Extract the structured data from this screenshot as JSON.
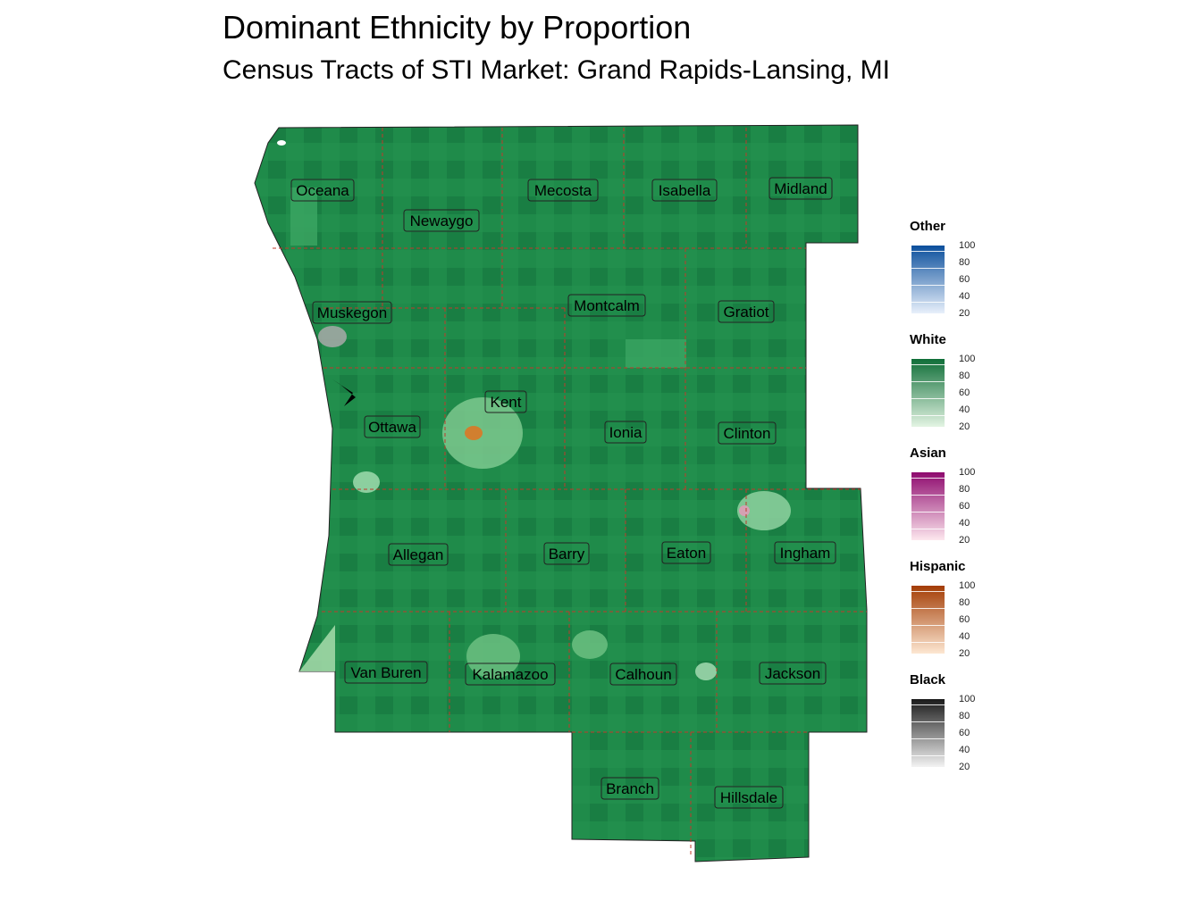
{
  "title": "Dominant Ethnicity by Proportion",
  "subtitle": "Census Tracts of STI Market: Grand Rapids-Lansing, MI",
  "map": {
    "counties": [
      {
        "name": "Oceana"
      },
      {
        "name": "Newaygo"
      },
      {
        "name": "Mecosta"
      },
      {
        "name": "Isabella"
      },
      {
        "name": "Midland"
      },
      {
        "name": "Muskegon"
      },
      {
        "name": "Montcalm"
      },
      {
        "name": "Gratiot"
      },
      {
        "name": "Kent"
      },
      {
        "name": "Ottawa"
      },
      {
        "name": "Ionia"
      },
      {
        "name": "Clinton"
      },
      {
        "name": "Allegan"
      },
      {
        "name": "Barry"
      },
      {
        "name": "Eaton"
      },
      {
        "name": "Ingham"
      },
      {
        "name": "Van Buren"
      },
      {
        "name": "Kalamazoo"
      },
      {
        "name": "Calhoun"
      },
      {
        "name": "Jackson"
      },
      {
        "name": "Branch"
      },
      {
        "name": "Hillsdale"
      }
    ],
    "fill_color": "#1e8a4a",
    "border_color": "#c0392b"
  },
  "legend": [
    {
      "title": "Other",
      "colors": [
        "#e8f0fb",
        "#0b4f9c"
      ],
      "ticks": [
        "100",
        "80",
        "60",
        "40",
        "20"
      ]
    },
    {
      "title": "White",
      "colors": [
        "#e3f4e3",
        "#0f6e38"
      ],
      "ticks": [
        "100",
        "80",
        "60",
        "40",
        "20"
      ]
    },
    {
      "title": "Asian",
      "colors": [
        "#fde7ee",
        "#8e0a6e"
      ],
      "ticks": [
        "100",
        "80",
        "60",
        "40",
        "20"
      ]
    },
    {
      "title": "Hispanic",
      "colors": [
        "#fde7d2",
        "#a33c04"
      ],
      "ticks": [
        "100",
        "80",
        "60",
        "40",
        "20"
      ]
    },
    {
      "title": "Black",
      "colors": [
        "#f3f3f3",
        "#1a1a1a"
      ],
      "ticks": [
        "100",
        "80",
        "60",
        "40",
        "20"
      ]
    }
  ]
}
